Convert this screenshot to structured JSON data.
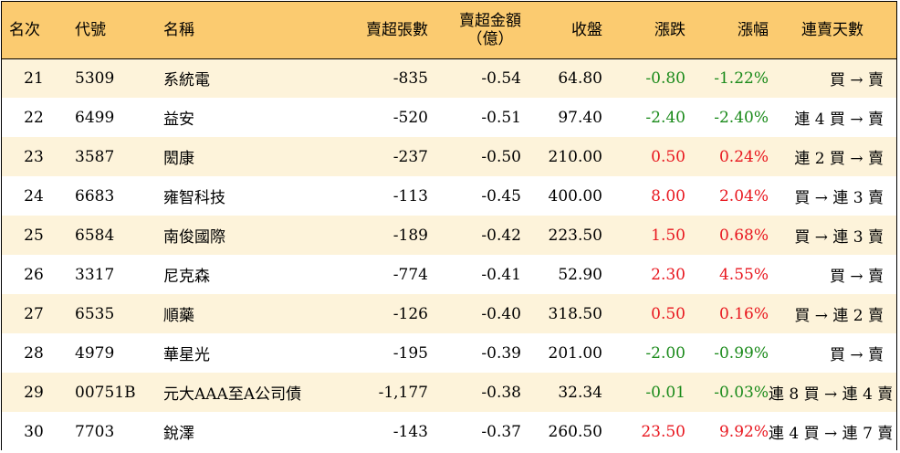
{
  "headers": {
    "rank": "名次",
    "code": "代號",
    "name": "名稱",
    "net_sell_lots": "賣超張數",
    "net_sell_amount_line1": "賣超金額",
    "net_sell_amount_line2": "（億）",
    "close": "收盤",
    "change": "漲跌",
    "change_pct": "漲幅",
    "consecutive": "連賣天數"
  },
  "colors": {
    "header_bg": "#fbcb70",
    "odd_row_bg": "#fdf3da",
    "up": "#e8161e",
    "down": "#1a8a1a"
  },
  "rows": [
    {
      "rank": "21",
      "code": "5309",
      "name": "系統電",
      "lots": "-835",
      "amount": "-0.54",
      "close": "64.80",
      "change": "-0.80",
      "pct": "-1.22%",
      "dir": "down",
      "days": "買 → 賣"
    },
    {
      "rank": "22",
      "code": "6499",
      "name": "益安",
      "lots": "-520",
      "amount": "-0.51",
      "close": "97.40",
      "change": "-2.40",
      "pct": "-2.40%",
      "dir": "down",
      "days": "連 4 買 → 賣"
    },
    {
      "rank": "23",
      "code": "3587",
      "name": "閎康",
      "lots": "-237",
      "amount": "-0.50",
      "close": "210.00",
      "change": "0.50",
      "pct": "0.24%",
      "dir": "up",
      "days": "連 2 買 → 賣"
    },
    {
      "rank": "24",
      "code": "6683",
      "name": "雍智科技",
      "lots": "-113",
      "amount": "-0.45",
      "close": "400.00",
      "change": "8.00",
      "pct": "2.04%",
      "dir": "up",
      "days": "買 → 連 3 賣"
    },
    {
      "rank": "25",
      "code": "6584",
      "name": "南俊國際",
      "lots": "-189",
      "amount": "-0.42",
      "close": "223.50",
      "change": "1.50",
      "pct": "0.68%",
      "dir": "up",
      "days": "買 → 連 3 賣"
    },
    {
      "rank": "26",
      "code": "3317",
      "name": "尼克森",
      "lots": "-774",
      "amount": "-0.41",
      "close": "52.90",
      "change": "2.30",
      "pct": "4.55%",
      "dir": "up",
      "days": "買 → 賣"
    },
    {
      "rank": "27",
      "code": "6535",
      "name": "順藥",
      "lots": "-126",
      "amount": "-0.40",
      "close": "318.50",
      "change": "0.50",
      "pct": "0.16%",
      "dir": "up",
      "days": "買 → 連 2 賣"
    },
    {
      "rank": "28",
      "code": "4979",
      "name": "華星光",
      "lots": "-195",
      "amount": "-0.39",
      "close": "201.00",
      "change": "-2.00",
      "pct": "-0.99%",
      "dir": "down",
      "days": "買 → 賣"
    },
    {
      "rank": "29",
      "code": "00751B",
      "name": "元大AAA至A公司債",
      "lots": "-1,177",
      "amount": "-0.38",
      "close": "32.34",
      "change": "-0.01",
      "pct": "-0.03%",
      "dir": "down",
      "days": "連 8 買 → 連 4 賣"
    },
    {
      "rank": "30",
      "code": "7703",
      "name": "銳澤",
      "lots": "-143",
      "amount": "-0.37",
      "close": "260.50",
      "change": "23.50",
      "pct": "9.92%",
      "dir": "up",
      "days": "連 4 買 → 連 7 賣"
    }
  ]
}
